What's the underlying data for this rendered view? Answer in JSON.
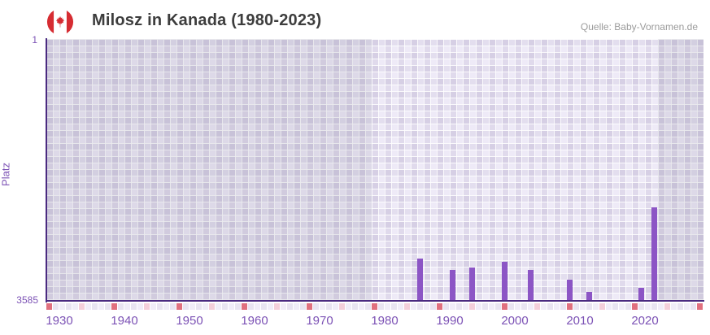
{
  "header": {
    "title": "Milosz in Kanada (1980-2023)",
    "source": "Quelle: Baby-Vornamen.de",
    "flag_icon": "canada-flag-icon"
  },
  "chart_data": {
    "type": "bar",
    "title": "Milosz in Kanada (1980-2023)",
    "xlabel": "",
    "ylabel": "Platz",
    "y_axis": {
      "top_label": "1",
      "bottom_label": "3585",
      "best_rank": 1,
      "worst_rank": 3585,
      "inverted": true
    },
    "x_axis": {
      "first_year": 1928,
      "last_year": 2028,
      "tick_years": [
        1930,
        1940,
        1950,
        1960,
        1970,
        1980,
        1990,
        2000,
        2010,
        2020
      ]
    },
    "points": [
      {
        "year": 1985,
        "rank": 3020
      },
      {
        "year": 1990,
        "rank": 3170
      },
      {
        "year": 1993,
        "rank": 3140
      },
      {
        "year": 1998,
        "rank": 3060
      },
      {
        "year": 2002,
        "rank": 3170
      },
      {
        "year": 2008,
        "rank": 3310
      },
      {
        "year": 2011,
        "rank": 3470
      },
      {
        "year": 2019,
        "rank": 3420
      },
      {
        "year": 2021,
        "rank": 2310
      }
    ],
    "data_window": {
      "start": 1978,
      "end": 2021
    },
    "marker_strip": {
      "red_years": [
        1928,
        1938,
        1948,
        1958,
        1968,
        1978,
        1988,
        1998,
        2008,
        2018,
        2028
      ],
      "pink_years": [
        1933,
        1943,
        1953,
        1963,
        1973,
        1983,
        1993,
        2003,
        2013,
        2023
      ]
    },
    "legend": null,
    "grid": true,
    "colors": {
      "bar": "#8c55c5",
      "axis_line": "#4a2a80",
      "axis_text": "#7c52b5",
      "red_marker": "#e0707e",
      "pink_marker": "#f4cfda",
      "out_of_range_shade": "rgba(108,108,134,0.13)"
    }
  }
}
